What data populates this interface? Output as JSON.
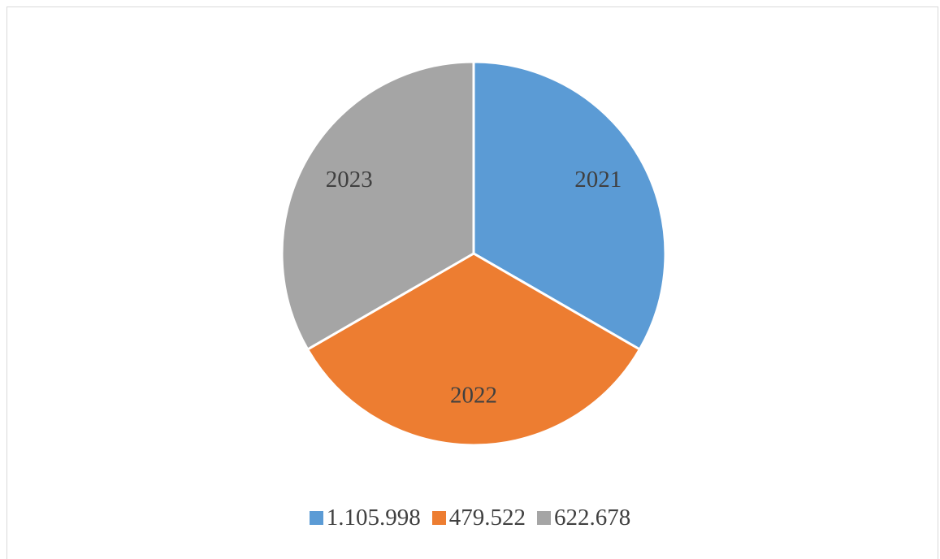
{
  "chart_data": {
    "type": "pie",
    "slices": [
      {
        "label": "2021",
        "legend": "1.105.998",
        "value": 1,
        "color": "#5b9bd5"
      },
      {
        "label": "2022",
        "legend": "479.522",
        "value": 1,
        "color": "#ed7d31"
      },
      {
        "label": "2023",
        "legend": "622.678",
        "value": 1,
        "color": "#a5a5a5"
      }
    ],
    "legend_position": "bottom",
    "slice_border_color": "#ffffff"
  }
}
